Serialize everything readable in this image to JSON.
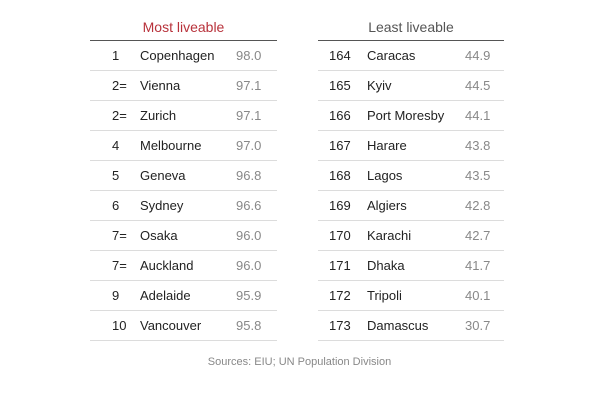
{
  "most_liveable": {
    "title": "Most liveable",
    "rows": [
      {
        "rank": "1",
        "city": "Copenhagen",
        "score": "98.0"
      },
      {
        "rank": "2=",
        "city": "Vienna",
        "score": "97.1"
      },
      {
        "rank": "2=",
        "city": "Zurich",
        "score": "97.1"
      },
      {
        "rank": "4",
        "city": "Melbourne",
        "score": "97.0"
      },
      {
        "rank": "5",
        "city": "Geneva",
        "score": "96.8"
      },
      {
        "rank": "6",
        "city": "Sydney",
        "score": "96.6"
      },
      {
        "rank": "7=",
        "city": "Osaka",
        "score": "96.0"
      },
      {
        "rank": "7=",
        "city": "Auckland",
        "score": "96.0"
      },
      {
        "rank": "9",
        "city": "Adelaide",
        "score": "95.9"
      },
      {
        "rank": "10",
        "city": "Vancouver",
        "score": "95.8"
      }
    ]
  },
  "least_liveable": {
    "title": "Least liveable",
    "rows": [
      {
        "rank": "164",
        "city": "Caracas",
        "score": "44.9"
      },
      {
        "rank": "165",
        "city": "Kyiv",
        "score": "44.5"
      },
      {
        "rank": "166",
        "city": "Port Moresby",
        "score": "44.1"
      },
      {
        "rank": "167",
        "city": "Harare",
        "score": "43.8"
      },
      {
        "rank": "168",
        "city": "Lagos",
        "score": "43.5"
      },
      {
        "rank": "169",
        "city": "Algiers",
        "score": "42.8"
      },
      {
        "rank": "170",
        "city": "Karachi",
        "score": "42.7"
      },
      {
        "rank": "171",
        "city": "Dhaka",
        "score": "41.7"
      },
      {
        "rank": "172",
        "city": "Tripoli",
        "score": "40.1"
      },
      {
        "rank": "173",
        "city": "Damascus",
        "score": "30.7"
      }
    ]
  },
  "source": "Sources: EIU; UN Population Division",
  "colors": {
    "most_title": "#b8323b",
    "least_title": "#555555",
    "score_text": "#888888"
  }
}
